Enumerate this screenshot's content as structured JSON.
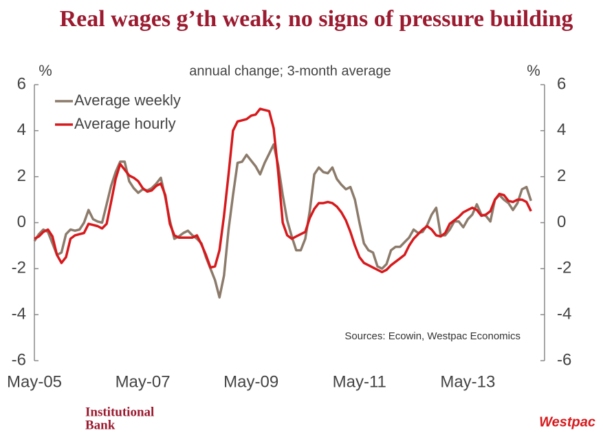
{
  "title": "Real wages g’th weak; no signs of pressure building",
  "chart_data": {
    "type": "line",
    "subtitle": "annual change; 3-month average",
    "y_unit": "%",
    "y2_unit": "%",
    "source": "Sources: Ecowin, Westpac Economics",
    "categories": [
      "May-05",
      null,
      null,
      null,
      null,
      null,
      null,
      null,
      null,
      null,
      null,
      null,
      null,
      null,
      null,
      null,
      null,
      null,
      null,
      null,
      null,
      null,
      null,
      null,
      "May-07",
      null,
      null,
      null,
      null,
      null,
      null,
      null,
      null,
      null,
      null,
      null,
      null,
      null,
      null,
      null,
      null,
      null,
      null,
      null,
      null,
      null,
      null,
      null,
      "May-09",
      null,
      null,
      null,
      null,
      null,
      null,
      null,
      null,
      null,
      null,
      null,
      null,
      null,
      null,
      null,
      null,
      null,
      null,
      null,
      null,
      null,
      null,
      null,
      "May-11",
      null,
      null,
      null,
      null,
      null,
      null,
      null,
      null,
      null,
      null,
      null,
      null,
      null,
      null,
      null,
      null,
      null,
      null,
      null,
      null,
      null,
      null,
      null,
      "May-13",
      null,
      null,
      null,
      null,
      null,
      null,
      null,
      null,
      null,
      null,
      null,
      null,
      null,
      null,
      null,
      null
    ],
    "series": [
      {
        "name": "Average weekly",
        "color": "#8c7b6b",
        "values": [
          -0.8,
          -0.5,
          -0.3,
          -0.4,
          -0.9,
          -1.4,
          -1.3,
          -0.5,
          -0.3,
          -0.35,
          -0.3,
          0.0,
          0.55,
          0.15,
          0.05,
          0.0,
          0.8,
          1.6,
          2.2,
          2.65,
          2.65,
          1.8,
          1.5,
          1.3,
          1.45,
          1.4,
          1.5,
          1.7,
          1.95,
          1.1,
          0.1,
          -0.7,
          -0.6,
          -0.45,
          -0.35,
          -0.55,
          -0.7,
          -0.9,
          -1.5,
          -2.0,
          -2.5,
          -3.25,
          -2.3,
          -0.3,
          1.2,
          2.6,
          2.65,
          2.95,
          2.7,
          2.45,
          2.1,
          2.6,
          3.0,
          3.4,
          2.5,
          1.2,
          0.1,
          -0.6,
          -1.2,
          -1.2,
          -0.7,
          0.5,
          2.1,
          2.4,
          2.2,
          2.15,
          2.4,
          1.9,
          1.65,
          1.45,
          1.55,
          1.0,
          0.0,
          -0.9,
          -1.2,
          -1.3,
          -1.9,
          -2.0,
          -1.8,
          -1.2,
          -1.05,
          -1.05,
          -0.85,
          -0.65,
          -0.3,
          -0.45,
          -0.4,
          -0.1,
          0.35,
          0.65,
          -0.55,
          -0.55,
          -0.3,
          0.05,
          0.05,
          -0.2,
          0.15,
          0.35,
          0.8,
          0.35,
          0.3,
          0.05,
          1.0,
          1.2,
          1.0,
          0.85,
          0.55,
          0.85,
          1.45,
          1.55,
          0.95,
          null,
          null
        ]
      },
      {
        "name": "Average hourly",
        "color": "#d7191c",
        "values": [
          -0.7,
          -0.6,
          -0.4,
          -0.3,
          -0.6,
          -1.4,
          -1.75,
          -1.5,
          -0.7,
          -0.55,
          -0.5,
          -0.45,
          -0.05,
          -0.1,
          -0.15,
          -0.25,
          -0.05,
          0.9,
          1.9,
          2.55,
          2.3,
          2.05,
          1.95,
          1.8,
          1.5,
          1.35,
          1.4,
          1.6,
          1.7,
          1.2,
          -0.05,
          -0.55,
          -0.65,
          -0.65,
          -0.65,
          -0.65,
          -0.55,
          -0.95,
          -1.4,
          -1.95,
          -1.9,
          -1.2,
          0.3,
          2.1,
          4.0,
          4.4,
          4.45,
          4.5,
          4.65,
          4.7,
          4.95,
          4.9,
          4.85,
          4.1,
          2.2,
          0.0,
          -0.55,
          -0.7,
          -0.6,
          -0.5,
          -0.4,
          0.2,
          0.6,
          0.85,
          0.85,
          0.9,
          0.85,
          0.7,
          0.45,
          0.1,
          -0.4,
          -1.0,
          -1.5,
          -1.75,
          -1.85,
          -1.95,
          -2.05,
          -2.15,
          -2.05,
          -1.85,
          -1.7,
          -1.55,
          -1.4,
          -1.0,
          -0.7,
          -0.5,
          -0.3,
          -0.15,
          -0.3,
          -0.55,
          -0.6,
          -0.45,
          -0.05,
          0.1,
          0.25,
          0.45,
          0.55,
          0.65,
          0.55,
          0.3,
          0.35,
          0.5,
          1.0,
          1.25,
          1.2,
          0.95,
          0.9,
          1.0,
          1.0,
          0.9,
          0.5,
          null,
          null
        ]
      }
    ],
    "ylim": [
      -6,
      6
    ],
    "yticks": [
      -6,
      -4,
      -2,
      0,
      2,
      4,
      6
    ],
    "y2lim": [
      -6,
      6
    ],
    "y2ticks": [
      -6,
      -4,
      -2,
      0,
      2,
      4,
      6
    ],
    "legend": "top-left",
    "grid": false
  },
  "footer": {
    "brand_lines": [
      "Institutional",
      "Bank"
    ],
    "logo": "Westpac"
  }
}
